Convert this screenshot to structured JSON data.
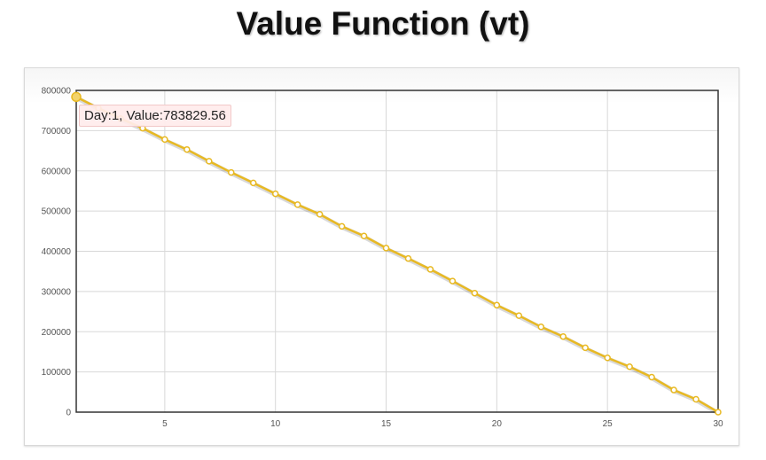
{
  "chart_data": {
    "type": "line",
    "title": "Value Function (vt)",
    "xlabel": "",
    "ylabel": "",
    "xlim": [
      1,
      30
    ],
    "ylim": [
      0,
      800000
    ],
    "x_ticks": [
      "5",
      "10",
      "15",
      "20",
      "25",
      "30"
    ],
    "y_ticks": [
      "0",
      "100000",
      "200000",
      "300000",
      "400000",
      "500000",
      "600000",
      "700000",
      "800000"
    ],
    "grid": true,
    "series": [
      {
        "color": "#e8b923",
        "x": [
          1,
          2,
          3,
          4,
          5,
          6,
          7,
          8,
          9,
          10,
          11,
          12,
          13,
          14,
          15,
          16,
          17,
          18,
          19,
          20,
          21,
          22,
          23,
          24,
          25,
          26,
          27,
          28,
          29,
          30
        ],
        "y": [
          783829.56,
          756000,
          730000,
          706000,
          678000,
          653000,
          624000,
          596000,
          570000,
          543000,
          516000,
          492000,
          462000,
          438000,
          408000,
          382000,
          355000,
          326000,
          296000,
          266000,
          240000,
          212000,
          188000,
          160000,
          135000,
          113000,
          87000,
          55000,
          32000,
          0
        ]
      }
    ]
  },
  "tooltip": {
    "text": "Day:1, Value:783829.56"
  }
}
